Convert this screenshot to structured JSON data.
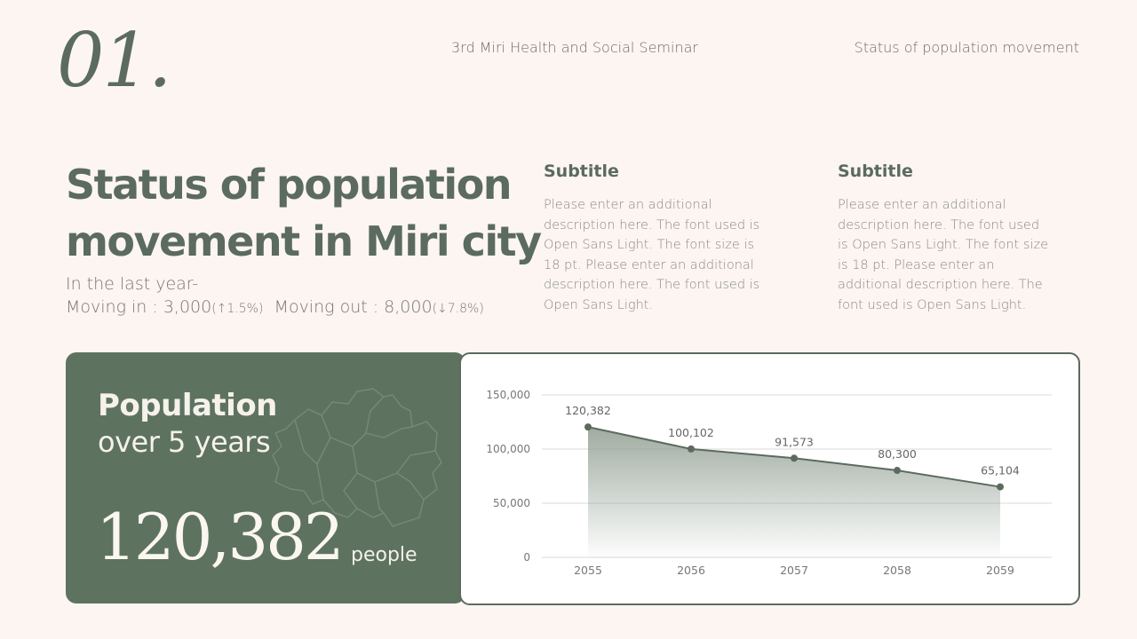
{
  "slide_number": "01.",
  "header": {
    "center": "3rd Miri Health and Social Seminar",
    "right": "Status of population movement"
  },
  "title": {
    "line1": "Status of population",
    "line2": "movement in Miri city"
  },
  "movement": {
    "intro": "In the last year-",
    "in_label": "Moving in : 3,000",
    "in_change": "(↑1.5%)",
    "out_label": "Moving out : 8,000",
    "out_change": "(↓7.8%)"
  },
  "subtitles": [
    {
      "heading": "Subtitle",
      "body": "Please enter an additional description here. The font used is Open Sans Light. The font size is 18 pt. Please enter an additional description here. The font used is Open Sans Light."
    },
    {
      "heading": "Subtitle",
      "body": "Please enter an additional description here. The font used is Open Sans Light. The font size is 18 pt. Please enter an additional description here. The font used is Open Sans Light."
    }
  ],
  "card": {
    "line1": "Population",
    "line2": "over 5 years",
    "value": "120,382",
    "unit": "people",
    "icon": "city-map-outline-icon",
    "color": "#5d7360"
  },
  "chart_data": {
    "type": "area",
    "title": "",
    "categories": [
      "2055",
      "2056",
      "2057",
      "2058",
      "2059"
    ],
    "values": [
      120382,
      100102,
      91573,
      80300,
      65104
    ],
    "data_labels": [
      "120,382",
      "100,102",
      "91,573",
      "80,300",
      "65,104"
    ],
    "y_ticks": [
      "0",
      "50,000",
      "100,000",
      "150,000"
    ],
    "ylim": [
      0,
      150000
    ],
    "xlabel": "",
    "ylabel": "",
    "grid": true,
    "legend": "none",
    "line_color": "#5b6b5e"
  }
}
